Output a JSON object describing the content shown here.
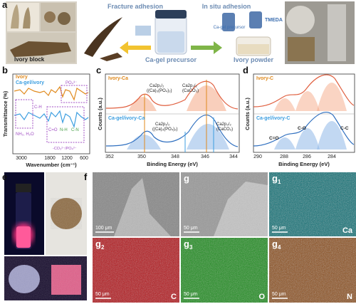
{
  "panels": {
    "a": {
      "label": "a",
      "fracture": "Fracture adhesion",
      "insitu": "In situ adhesion",
      "precursor": "Ca-gel precursor",
      "dropper": "Ca-gel precursor",
      "tmeda": "TMEDA",
      "block": "Ivory block",
      "powder": "Ivory powder"
    },
    "b": {
      "label": "b",
      "legend": [
        "Ivory",
        "Ca-gel/ivory"
      ],
      "ylabel": "Transmittance (%)",
      "xlabel": "Wavenumber (cm⁻¹)",
      "xticks": [
        "3000",
        "1800",
        "1200",
        "600"
      ],
      "annotations": [
        "PO₄³⁻",
        "C-H",
        "NH₂, H₂O",
        "C=O",
        "N-H",
        "C-N",
        "-CO₃²⁻/PO₄³⁻"
      ]
    },
    "c": {
      "label": "c",
      "top": "Ivory-Ca",
      "bottom": "Ca-gel/ivory-Ca",
      "ylabel": "Counts (a.u.)",
      "xlabel": "Binding Energy (eV)",
      "xticks": [
        "352",
        "350",
        "348",
        "346",
        "344"
      ],
      "peaks": [
        "Ca2p₁/₂",
        "((Ca)₃(PO₄)₂)",
        "Ca2p₃/₂",
        "(CaCO₃)",
        "Ca2p₁/₂",
        "((Ca)₃(PO₄)₂)",
        "Ca2p₃/₂",
        "(CaCO₃)"
      ]
    },
    "d": {
      "label": "d",
      "top": "Ivory-C",
      "bottom": "Ca-gel/ivory-C",
      "ylabel": "Counts (a.u.)",
      "xlabel": "Binding Energy (eV)",
      "xticks": [
        "290",
        "288",
        "286",
        "284"
      ],
      "peaks": [
        "C=O",
        "C-O",
        "C-C"
      ]
    },
    "e": {
      "label": "e"
    },
    "f": {
      "label": "f",
      "scale": "100 μm"
    },
    "g": {
      "label": "g",
      "scale": "50 μm"
    },
    "g1": {
      "letter": "g",
      "sub": "1",
      "scale": "50 μm",
      "element": "Ca"
    },
    "g2": {
      "letter": "g",
      "sub": "2",
      "scale": "50 μm",
      "element": "C"
    },
    "g3": {
      "letter": "g",
      "sub": "3",
      "scale": "50 μm",
      "element": "O"
    },
    "g4": {
      "letter": "g",
      "sub": "4",
      "scale": "50 μm",
      "element": "N"
    }
  }
}
